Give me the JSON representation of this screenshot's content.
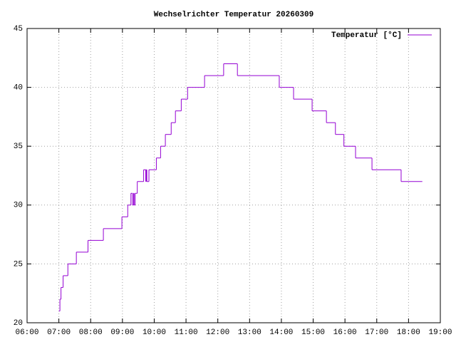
{
  "chart_data": {
    "type": "line",
    "title": "Wechselrichter Temperatur 20260309",
    "x": [
      "07:00",
      "07:02",
      "07:04",
      "07:08",
      "07:17",
      "07:33",
      "07:55",
      "08:24",
      "08:59",
      "09:10",
      "09:16",
      "09:19",
      "09:21",
      "09:22",
      "09:24",
      "09:28",
      "09:40",
      "09:44",
      "09:45",
      "09:46",
      "09:50",
      "10:04",
      "10:12",
      "10:21",
      "10:32",
      "10:40",
      "10:51",
      "11:03",
      "11:35",
      "12:11",
      "12:37",
      "13:56",
      "14:23",
      "14:58",
      "15:25",
      "15:42",
      "15:58",
      "16:20",
      "16:51",
      "17:46",
      "18:26"
    ],
    "series": [
      {
        "name": "Temperatur [°C]",
        "color": "#9400d3",
        "values": [
          21,
          22,
          23,
          24,
          25,
          26,
          27,
          28,
          29,
          30,
          31,
          30,
          31,
          30,
          31,
          32,
          33,
          32,
          33,
          32,
          33,
          34,
          35,
          36,
          37,
          38,
          39,
          40,
          41,
          42,
          41,
          40,
          39,
          38,
          37,
          36,
          35,
          34,
          33,
          32,
          32
        ]
      }
    ],
    "xlim": [
      "06:00",
      "19:00"
    ],
    "xticks": [
      "06:00",
      "07:00",
      "08:00",
      "09:00",
      "10:00",
      "11:00",
      "12:00",
      "13:00",
      "14:00",
      "15:00",
      "16:00",
      "17:00",
      "18:00",
      "19:00"
    ],
    "ylim": [
      20,
      45
    ],
    "yticks": [
      20,
      25,
      30,
      35,
      40,
      45
    ],
    "grid": true,
    "legend": "top-right"
  }
}
